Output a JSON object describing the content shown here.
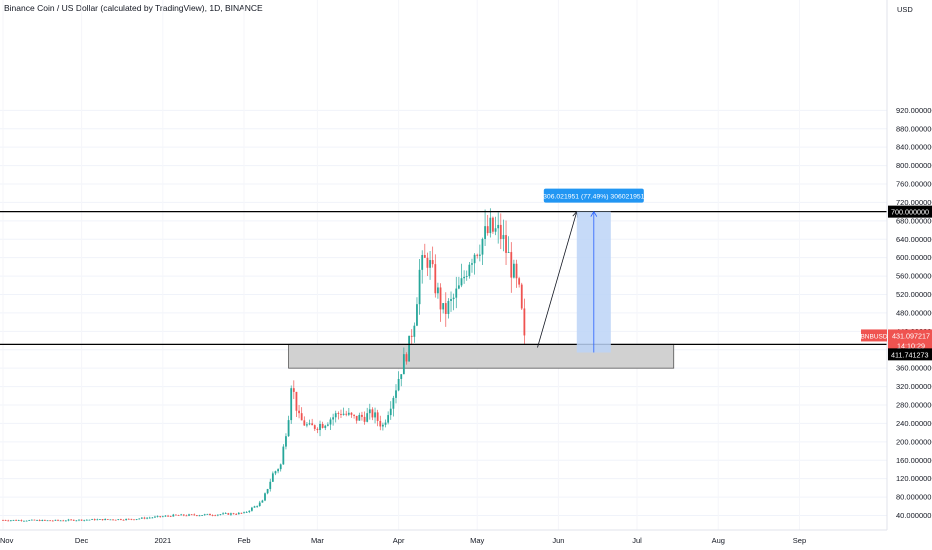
{
  "header": {
    "title": "Binance Coin / US Dollar (calculated by TradingView), 1D, BINANCE"
  },
  "price_axis": {
    "currency": "USD",
    "ticks": [
      "920.000000",
      "880.000000",
      "840.000000",
      "800.000000",
      "760.000000",
      "720.000000",
      "680.000000",
      "640.000000",
      "600.000000",
      "560.000000",
      "520.000000",
      "480.000000",
      "440.000000",
      "400.000000",
      "360.000000",
      "320.000000",
      "280.000000",
      "240.000000",
      "200.000000",
      "160.000000",
      "120.000000",
      "80.000000",
      "40.000000"
    ]
  },
  "time_axis": {
    "labels": [
      "Nov",
      "Dec",
      "2021",
      "Feb",
      "Mar",
      "Apr",
      "May",
      "Jun",
      "Jul",
      "Aug",
      "Sep"
    ]
  },
  "markers": {
    "resistance_label": "700.000000",
    "symbol_badge": "BNBUSD",
    "last_price": "431.097217",
    "countdown": "14:10:29",
    "support_label": "411.741273"
  },
  "measure_tool": {
    "label": "306.021951 (77.49%) 306021951"
  },
  "colors": {
    "up": "#26a69a",
    "down": "#ef5350",
    "zone_fill": "#d1d1d1",
    "measure_fill": "#bcd4f7",
    "measure_label_bg": "#2196f3",
    "price_badge": "#ef5350"
  },
  "chart_data": {
    "type": "candlestick",
    "title": "Binance Coin / US Dollar (calculated by TradingView), 1D, BINANCE",
    "ylim": [
      20,
      950
    ],
    "y_unit": "USD",
    "yticks": [
      40,
      80,
      120,
      160,
      200,
      240,
      280,
      320,
      360,
      400,
      440,
      480,
      520,
      560,
      600,
      640,
      680,
      720,
      760,
      800,
      840,
      880,
      920
    ],
    "xticks": [
      "Nov",
      "Dec",
      "2021",
      "Feb",
      "Mar",
      "Apr",
      "May",
      "Jun",
      "Jul",
      "Aug",
      "Sep"
    ],
    "close_path": [
      [
        "2020-11-01",
        30
      ],
      [
        "2020-11-20",
        29
      ],
      [
        "2020-12-05",
        31
      ],
      [
        "2020-12-20",
        32
      ],
      [
        "2021-01-05",
        40
      ],
      [
        "2021-01-20",
        42
      ],
      [
        "2021-02-01",
        45
      ],
      [
        "2021-02-08",
        70
      ],
      [
        "2021-02-12",
        130
      ],
      [
        "2021-02-15",
        150
      ],
      [
        "2021-02-18",
        260
      ],
      [
        "2021-02-19",
        330
      ],
      [
        "2021-02-22",
        250
      ],
      [
        "2021-02-26",
        230
      ],
      [
        "2021-03-03",
        240
      ],
      [
        "2021-03-10",
        265
      ],
      [
        "2021-03-15",
        250
      ],
      [
        "2021-03-22",
        260
      ],
      [
        "2021-03-26",
        235
      ],
      [
        "2021-03-31",
        320
      ],
      [
        "2021-04-02",
        360
      ],
      [
        "2021-04-05",
        410
      ],
      [
        "2021-04-07",
        470
      ],
      [
        "2021-04-09",
        570
      ],
      [
        "2021-04-12",
        600
      ],
      [
        "2021-04-15",
        540
      ],
      [
        "2021-04-18",
        480
      ],
      [
        "2021-04-21",
        500
      ],
      [
        "2021-04-25",
        540
      ],
      [
        "2021-04-28",
        600
      ],
      [
        "2021-05-03",
        640
      ],
      [
        "2021-05-06",
        660
      ],
      [
        "2021-05-10",
        650
      ],
      [
        "2021-05-13",
        600
      ],
      [
        "2021-05-15",
        560
      ],
      [
        "2021-05-17",
        520
      ],
      [
        "2021-05-19",
        431.1
      ]
    ],
    "resistance": 700,
    "support": 411.741273,
    "zone": {
      "from": 360,
      "to": 411.741273,
      "start": "2021-02-18",
      "end": "2021-07-15"
    },
    "measure": {
      "from": 393.98,
      "to": 700,
      "start": "2021-06-08",
      "end": "2021-06-21",
      "change": 306.021951,
      "percent": 77.49
    },
    "projection": {
      "from_date": "2021-05-24",
      "from_value": 405,
      "to_date": "2021-06-08",
      "to_value": 700
    },
    "last_price": 431.097217
  }
}
